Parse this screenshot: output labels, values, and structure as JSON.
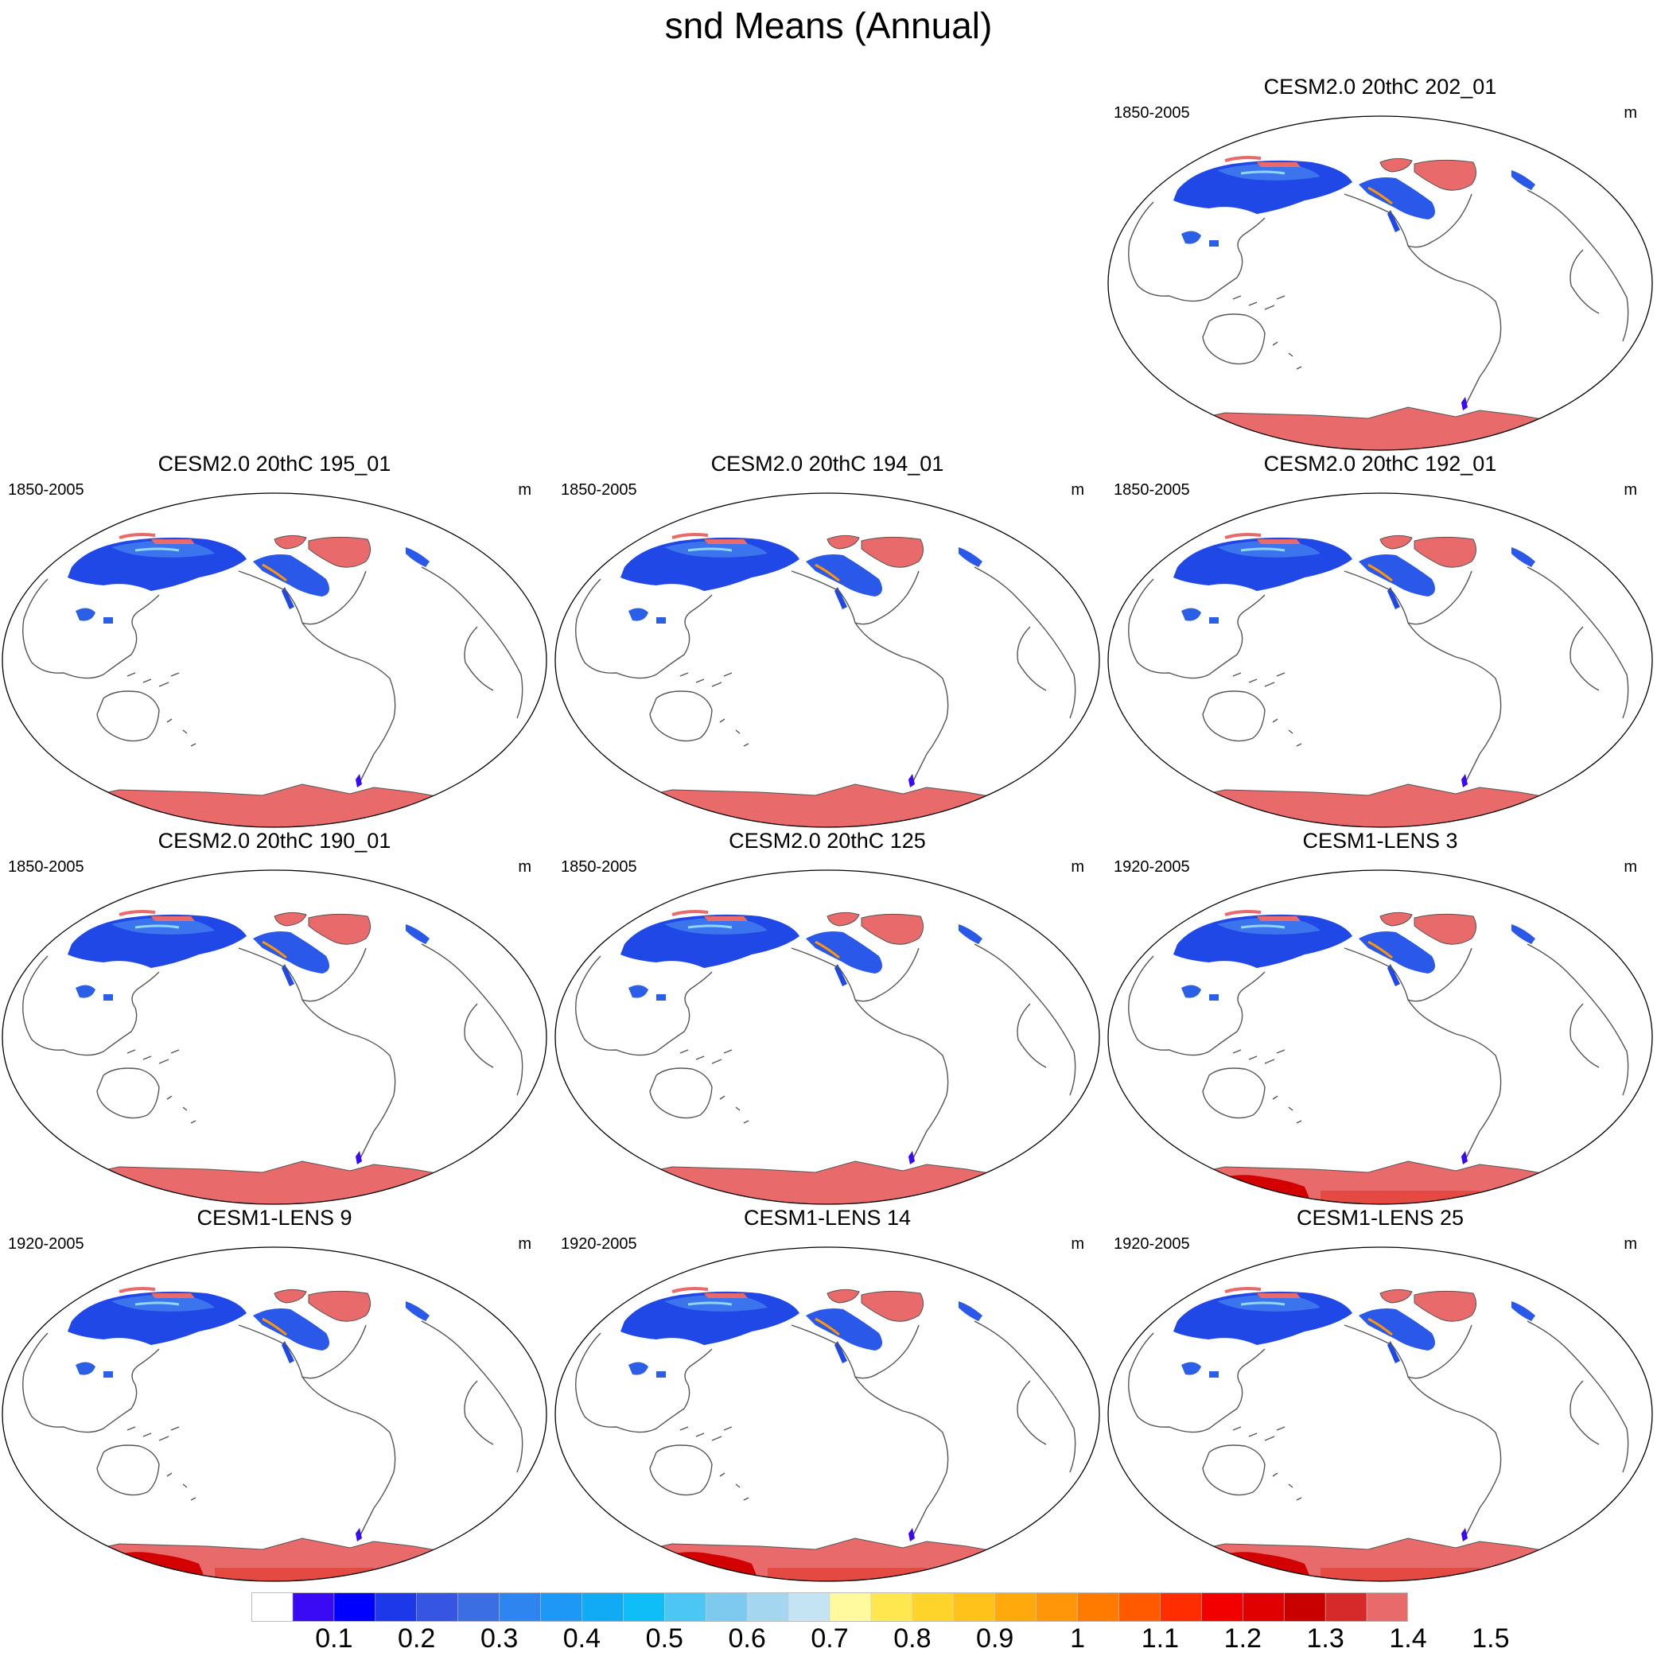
{
  "figure": {
    "title": "snd Means (Annual)"
  },
  "panels": [
    {
      "title": "CESM2.0 20thC 202_01",
      "years": "1850-2005",
      "units": "m",
      "variant": "cesm2"
    },
    {
      "title": "CESM2.0 20thC 195_01",
      "years": "1850-2005",
      "units": "m",
      "variant": "cesm2"
    },
    {
      "title": "CESM2.0 20thC 194_01",
      "years": "1850-2005",
      "units": "m",
      "variant": "cesm2"
    },
    {
      "title": "CESM2.0 20thC 192_01",
      "years": "1850-2005",
      "units": "m",
      "variant": "cesm2"
    },
    {
      "title": "CESM2.0 20thC 190_01",
      "years": "1850-2005",
      "units": "m",
      "variant": "cesm2"
    },
    {
      "title": "CESM2.0 20thC 125",
      "years": "1850-2005",
      "units": "m",
      "variant": "cesm2"
    },
    {
      "title": "CESM1-LENS 3",
      "years": "1920-2005",
      "units": "m",
      "variant": "lens"
    },
    {
      "title": "CESM1-LENS 9",
      "years": "1920-2005",
      "units": "m",
      "variant": "lens"
    },
    {
      "title": "CESM1-LENS 14",
      "years": "1920-2005",
      "units": "m",
      "variant": "lens"
    },
    {
      "title": "CESM1-LENS 25",
      "years": "1920-2005",
      "units": "m",
      "variant": "lens"
    }
  ],
  "colorbar": {
    "labels": [
      "0.1",
      "0.2",
      "0.3",
      "0.4",
      "0.5",
      "0.6",
      "0.7",
      "0.8",
      "0.9",
      "1",
      "1.1",
      "1.2",
      "1.3",
      "1.4",
      "1.5"
    ],
    "colors": [
      "#ffffff",
      "#3a0af5",
      "#0000ff",
      "#1c38e8",
      "#3555e2",
      "#3c6ee3",
      "#2f85ef",
      "#1e98f6",
      "#10aaf5",
      "#0fbef6",
      "#4cc6f2",
      "#7dcaee",
      "#a4d6ef",
      "#c4e4f3",
      "#fffa9e",
      "#ffe74f",
      "#ffd42a",
      "#ffc21a",
      "#ffa90c",
      "#ff9508",
      "#ff7b00",
      "#ff5a00",
      "#ff2d00",
      "#f20000",
      "#e00000",
      "#c90000",
      "#d62a2a",
      "#e86a6a"
    ]
  },
  "map_style": {
    "coastline_color": "#555555",
    "border_color": "#000000",
    "antarctica_color": "#e86a6a",
    "greenland_color": "#e86a6a",
    "deep_red": "#d20000"
  }
}
